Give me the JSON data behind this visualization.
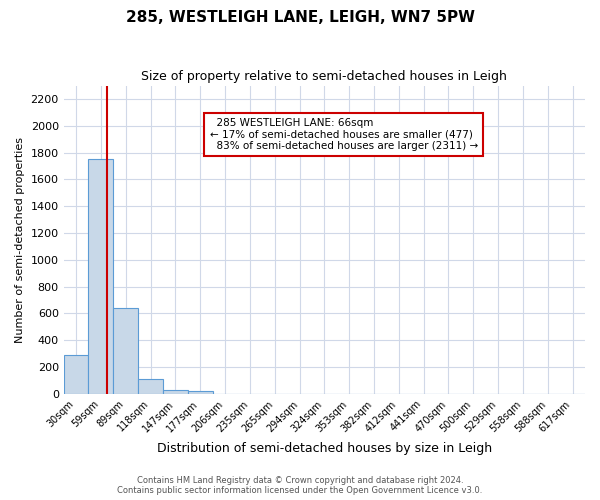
{
  "title": "285, WESTLEIGH LANE, LEIGH, WN7 5PW",
  "subtitle": "Size of property relative to semi-detached houses in Leigh",
  "xlabel": "Distribution of semi-detached houses by size in Leigh",
  "ylabel": "Number of semi-detached properties",
  "bin_labels": [
    "30sqm",
    "59sqm",
    "89sqm",
    "118sqm",
    "147sqm",
    "177sqm",
    "206sqm",
    "235sqm",
    "265sqm",
    "294sqm",
    "324sqm",
    "353sqm",
    "382sqm",
    "412sqm",
    "441sqm",
    "470sqm",
    "500sqm",
    "529sqm",
    "558sqm",
    "588sqm",
    "617sqm"
  ],
  "bar_values": [
    290,
    1750,
    640,
    110,
    30,
    25,
    0,
    0,
    0,
    0,
    0,
    0,
    0,
    0,
    0,
    0,
    0,
    0,
    0,
    0,
    0
  ],
  "bar_color": "#c8d8e8",
  "bar_edge_color": "#5b9bd5",
  "ylim": [
    0,
    2300
  ],
  "yticks": [
    0,
    200,
    400,
    600,
    800,
    1000,
    1200,
    1400,
    1600,
    1800,
    2000,
    2200
  ],
  "property_size": 66,
  "property_label": "285 WESTLEIGH LANE: 66sqm",
  "smaller_pct": "17%",
  "smaller_count": 477,
  "larger_pct": "83%",
  "larger_count": 2311,
  "vline_color": "#cc0000",
  "annotation_box_color": "#cc0000",
  "background_color": "#ffffff",
  "grid_color": "#d0d8e8",
  "footer_line1": "Contains HM Land Registry data © Crown copyright and database right 2024.",
  "footer_line2": "Contains public sector information licensed under the Open Government Licence v3.0."
}
